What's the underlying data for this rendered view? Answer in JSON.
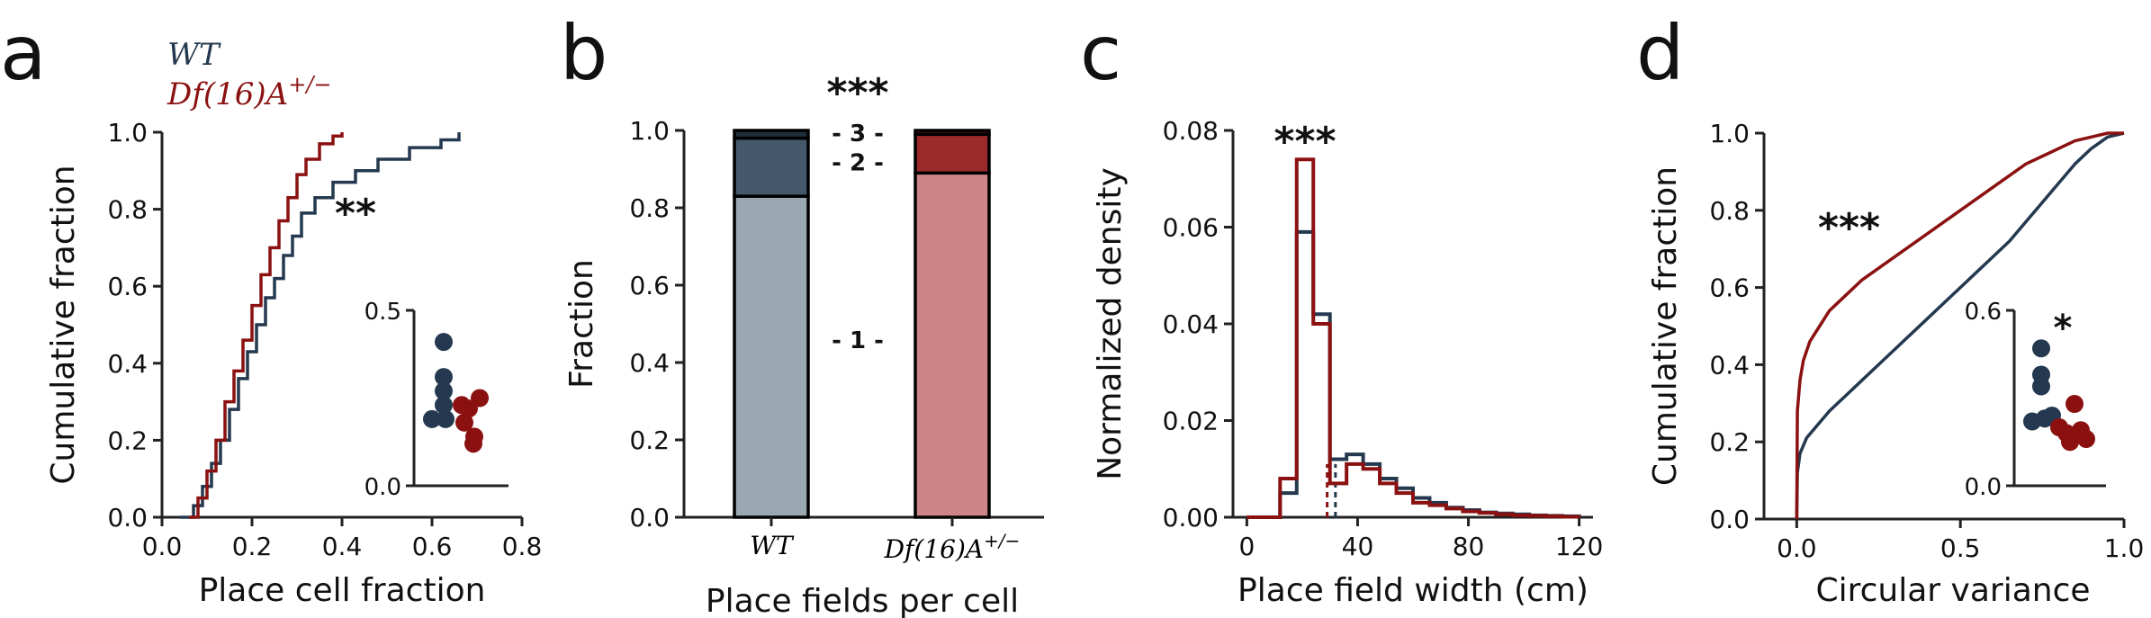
{
  "colors": {
    "wt": "#24394f",
    "df": "#8b1111",
    "wt_light": "#9aa9b1",
    "wt_mid": "#445a6c",
    "wt_dark": "#1f2e3b",
    "df_light": "#cd8687",
    "df_mid": "#9b2a2b",
    "df_dark": "#6b0e0e"
  },
  "panels": {
    "a": "a",
    "b": "b",
    "c": "c",
    "d": "d"
  },
  "chart_data": [
    {
      "type": "line",
      "panel": "a",
      "xlabel": "Place cell fraction",
      "ylabel": "Cumulative fraction",
      "xlim": [
        0.0,
        0.8
      ],
      "ylim": [
        0.0,
        1.0
      ],
      "xticks": [
        "0.0",
        "0.2",
        "0.4",
        "0.6",
        "0.8"
      ],
      "yticks": [
        "0.0",
        "0.2",
        "0.4",
        "0.6",
        "0.8",
        "1.0"
      ],
      "legend": [
        "WT",
        "Df(16)A+/−"
      ],
      "significance": "**",
      "series": [
        {
          "name": "WT",
          "x": [
            0.04,
            0.07,
            0.09,
            0.11,
            0.13,
            0.15,
            0.17,
            0.19,
            0.21,
            0.23,
            0.25,
            0.27,
            0.29,
            0.31,
            0.34,
            0.38,
            0.43,
            0.48,
            0.55,
            0.62,
            0.66
          ],
          "y": [
            0.0,
            0.03,
            0.08,
            0.14,
            0.2,
            0.28,
            0.36,
            0.43,
            0.5,
            0.57,
            0.62,
            0.68,
            0.73,
            0.79,
            0.83,
            0.87,
            0.9,
            0.93,
            0.96,
            0.98,
            1.0
          ]
        },
        {
          "name": "Df(16)A+/−",
          "x": [
            0.06,
            0.08,
            0.1,
            0.12,
            0.14,
            0.16,
            0.18,
            0.2,
            0.22,
            0.24,
            0.26,
            0.28,
            0.3,
            0.32,
            0.35,
            0.38,
            0.4
          ],
          "y": [
            0.0,
            0.05,
            0.12,
            0.2,
            0.3,
            0.38,
            0.46,
            0.55,
            0.63,
            0.7,
            0.77,
            0.83,
            0.89,
            0.93,
            0.97,
            0.99,
            1.0
          ]
        }
      ],
      "inset": {
        "ylim": [
          0.0,
          0.5
        ],
        "yticks": [
          "0.0",
          "0.5"
        ],
        "WT": [
          0.41,
          0.31,
          0.27,
          0.23,
          0.19,
          0.19
        ],
        "Df(16)A+/−": [
          0.25,
          0.23,
          0.22,
          0.18,
          0.14,
          0.12
        ]
      }
    },
    {
      "type": "bar",
      "panel": "b",
      "xlabel": "Place fields per cell",
      "ylabel": "Fraction",
      "ylim": [
        0.0,
        1.0
      ],
      "yticks": [
        "0.0",
        "0.2",
        "0.4",
        "0.6",
        "0.8",
        "1.0"
      ],
      "categories": [
        "WT",
        "Df(16)A+/−"
      ],
      "stack_labels": [
        "- 1 -",
        "- 2 -",
        "- 3 -"
      ],
      "significance": "***",
      "series": [
        {
          "name": "1",
          "values": [
            0.83,
            0.89
          ]
        },
        {
          "name": "2",
          "values": [
            0.15,
            0.1
          ]
        },
        {
          "name": "3",
          "values": [
            0.02,
            0.01
          ]
        }
      ]
    },
    {
      "type": "bar",
      "panel": "c",
      "subtype": "histogram",
      "xlabel": "Place field width (cm)",
      "ylabel": "Normalized density",
      "xlim": [
        -5,
        125
      ],
      "ylim": [
        0.0,
        0.08
      ],
      "xticks": [
        "0",
        "40",
        "80",
        "120"
      ],
      "yticks": [
        "0.00",
        "0.02",
        "0.04",
        "0.06",
        "0.08"
      ],
      "significance": "***",
      "bin_edges": [
        12,
        18,
        24,
        30,
        36,
        42,
        48,
        54,
        60,
        66,
        72,
        78,
        84,
        90,
        96,
        102,
        108,
        114,
        120
      ],
      "series": [
        {
          "name": "WT",
          "values": [
            0.005,
            0.059,
            0.042,
            0.012,
            0.013,
            0.011,
            0.008,
            0.006,
            0.004,
            0.003,
            0.002,
            0.0015,
            0.001,
            0.0008,
            0.0006,
            0.0004,
            0.0003,
            0.0002
          ],
          "mean_line": 32
        },
        {
          "name": "Df(16)A+/−",
          "values": [
            0.008,
            0.074,
            0.04,
            0.007,
            0.011,
            0.01,
            0.007,
            0.005,
            0.003,
            0.0025,
            0.0018,
            0.0012,
            0.0009,
            0.0006,
            0.0004,
            0.0003,
            0.0002,
            0.0001
          ],
          "mean_line": 29
        }
      ]
    },
    {
      "type": "line",
      "panel": "d",
      "xlabel": "Circular variance",
      "ylabel": "Cumulative fraction",
      "xlim": [
        -0.1,
        1.0
      ],
      "ylim": [
        0.0,
        1.0
      ],
      "xticks": [
        "0.0",
        "0.5",
        "1.0"
      ],
      "yticks": [
        "0.0",
        "0.2",
        "0.4",
        "0.6",
        "0.8",
        "1.0"
      ],
      "significance": "***",
      "series": [
        {
          "name": "WT",
          "x": [
            0.0,
            0.002,
            0.01,
            0.03,
            0.06,
            0.1,
            0.15,
            0.2,
            0.25,
            0.3,
            0.35,
            0.4,
            0.45,
            0.5,
            0.55,
            0.6,
            0.65,
            0.7,
            0.75,
            0.8,
            0.85,
            0.9,
            0.95,
            1.0
          ],
          "y": [
            0.0,
            0.12,
            0.17,
            0.21,
            0.24,
            0.28,
            0.32,
            0.36,
            0.4,
            0.44,
            0.48,
            0.52,
            0.56,
            0.6,
            0.64,
            0.68,
            0.72,
            0.77,
            0.82,
            0.87,
            0.92,
            0.96,
            0.99,
            1.0
          ]
        },
        {
          "name": "Df(16)A+/−",
          "x": [
            0.0,
            0.002,
            0.01,
            0.02,
            0.04,
            0.07,
            0.1,
            0.15,
            0.2,
            0.25,
            0.3,
            0.35,
            0.4,
            0.45,
            0.5,
            0.55,
            0.6,
            0.65,
            0.7,
            0.75,
            0.8,
            0.85,
            0.9,
            0.95,
            1.0
          ],
          "y": [
            0.0,
            0.28,
            0.36,
            0.41,
            0.46,
            0.5,
            0.54,
            0.58,
            0.62,
            0.65,
            0.68,
            0.71,
            0.74,
            0.77,
            0.8,
            0.83,
            0.86,
            0.89,
            0.92,
            0.94,
            0.96,
            0.98,
            0.99,
            1.0,
            1.0
          ]
        }
      ],
      "inset": {
        "ylim": [
          0.0,
          0.6
        ],
        "yticks": [
          "0.0",
          "0.6"
        ],
        "significance": "*",
        "WT": [
          0.47,
          0.38,
          0.34,
          0.24,
          0.22,
          0.23
        ],
        "Df(16)A+/−": [
          0.28,
          0.2,
          0.19,
          0.18,
          0.16,
          0.15
        ]
      }
    }
  ]
}
